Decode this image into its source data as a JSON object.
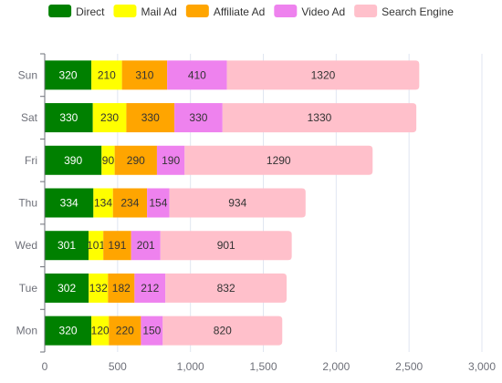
{
  "chart_data": {
    "type": "bar",
    "orientation": "horizontal",
    "stacked": true,
    "title": "",
    "xlabel": "",
    "ylabel": "",
    "categories": [
      "Mon",
      "Tue",
      "Wed",
      "Thu",
      "Fri",
      "Sat",
      "Sun"
    ],
    "xlim": [
      0,
      3000
    ],
    "x_ticks": [
      0,
      500,
      1000,
      1500,
      2000,
      2500,
      3000
    ],
    "x_tick_labels": [
      "0",
      "500",
      "1,000",
      "1,500",
      "2,000",
      "2,500",
      "3,000"
    ],
    "grid": "vertical",
    "legend_position": "top-center",
    "series": [
      {
        "name": "Direct",
        "color": "#008000",
        "label_color": "#ffffff",
        "values": [
          320,
          302,
          301,
          334,
          390,
          330,
          320
        ]
      },
      {
        "name": "Mail Ad",
        "color": "#ffff00",
        "label_color": "#333333",
        "values": [
          120,
          132,
          101,
          134,
          90,
          230,
          210
        ]
      },
      {
        "name": "Affiliate Ad",
        "color": "#ffa500",
        "label_color": "#333333",
        "values": [
          220,
          182,
          191,
          234,
          290,
          330,
          310
        ]
      },
      {
        "name": "Video Ad",
        "color": "#ee82ee",
        "label_color": "#333333",
        "values": [
          150,
          212,
          201,
          154,
          190,
          330,
          410
        ]
      },
      {
        "name": "Search Engine",
        "color": "#ffc0cb",
        "label_color": "#333333",
        "values": [
          820,
          832,
          901,
          934,
          1290,
          1330,
          1320
        ]
      }
    ]
  }
}
